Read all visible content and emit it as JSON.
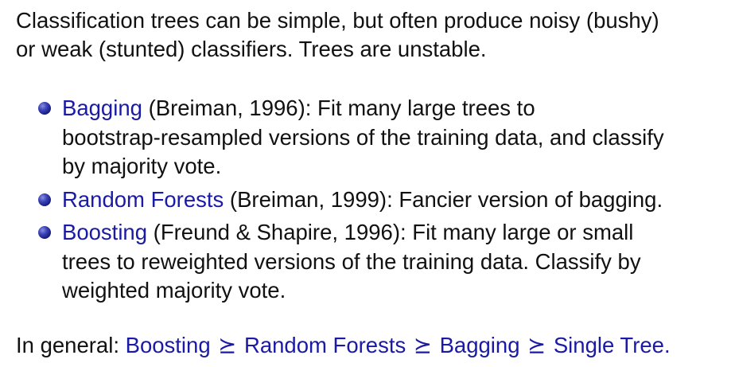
{
  "intro": {
    "line1": "Classification trees can be simple, but often produce noisy (bushy)",
    "line2": "or weak (stunted) classifiers. Trees are unstable."
  },
  "bullets": [
    {
      "term": "Bagging",
      "rest_line1": " (Breiman, 1996): Fit many large trees to",
      "line2": "bootstrap-resampled versions of the training data, and classify",
      "line3": "by majority vote."
    },
    {
      "term": "Random Forests",
      "rest_line1": " (Breiman, 1999): Fancier version of bagging."
    },
    {
      "term": "Boosting",
      "rest_line1": " (Freund & Shapire, 1996): Fit many large or small",
      "line2": "trees to reweighted versions of the training data. Classify by",
      "line3": "weighted majority vote."
    }
  ],
  "conclusion": {
    "prefix": "In general: ",
    "ranking": [
      "Boosting",
      "Random Forests",
      "Bagging",
      "Single Tree."
    ],
    "symbol": "⪰"
  },
  "colors": {
    "term": "#1a1aa6",
    "text": "#111111",
    "bullet": "#13187a"
  }
}
